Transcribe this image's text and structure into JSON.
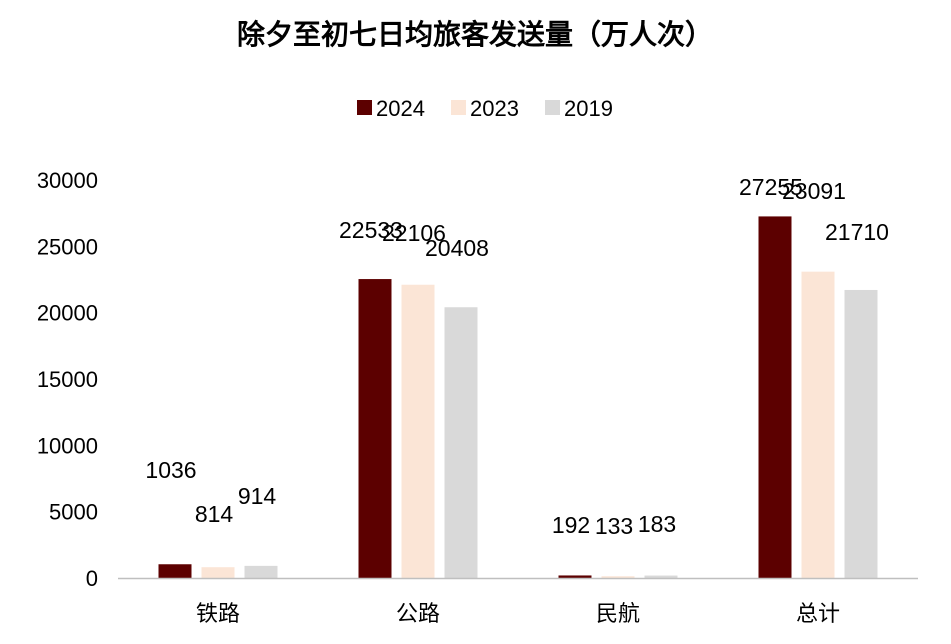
{
  "chart_data": {
    "type": "bar",
    "title": "除夕至初七日均旅客发送量（万人次）",
    "categories": [
      "铁路",
      "公路",
      "民航",
      "总计"
    ],
    "series": [
      {
        "name": "2024",
        "color": "#5c0000",
        "values": [
          1036,
          22533,
          192,
          27255
        ]
      },
      {
        "name": "2023",
        "color": "#fbe5d6",
        "values": [
          814,
          22106,
          133,
          23091
        ]
      },
      {
        "name": "2019",
        "color": "#d9d9d9",
        "values": [
          914,
          20408,
          183,
          21710
        ]
      }
    ],
    "ylim": [
      0,
      30000
    ],
    "yticks": [
      0,
      5000,
      10000,
      15000,
      20000,
      25000,
      30000
    ],
    "legend_position": "top-center",
    "grid": false,
    "xlabel": "",
    "ylabel": ""
  }
}
